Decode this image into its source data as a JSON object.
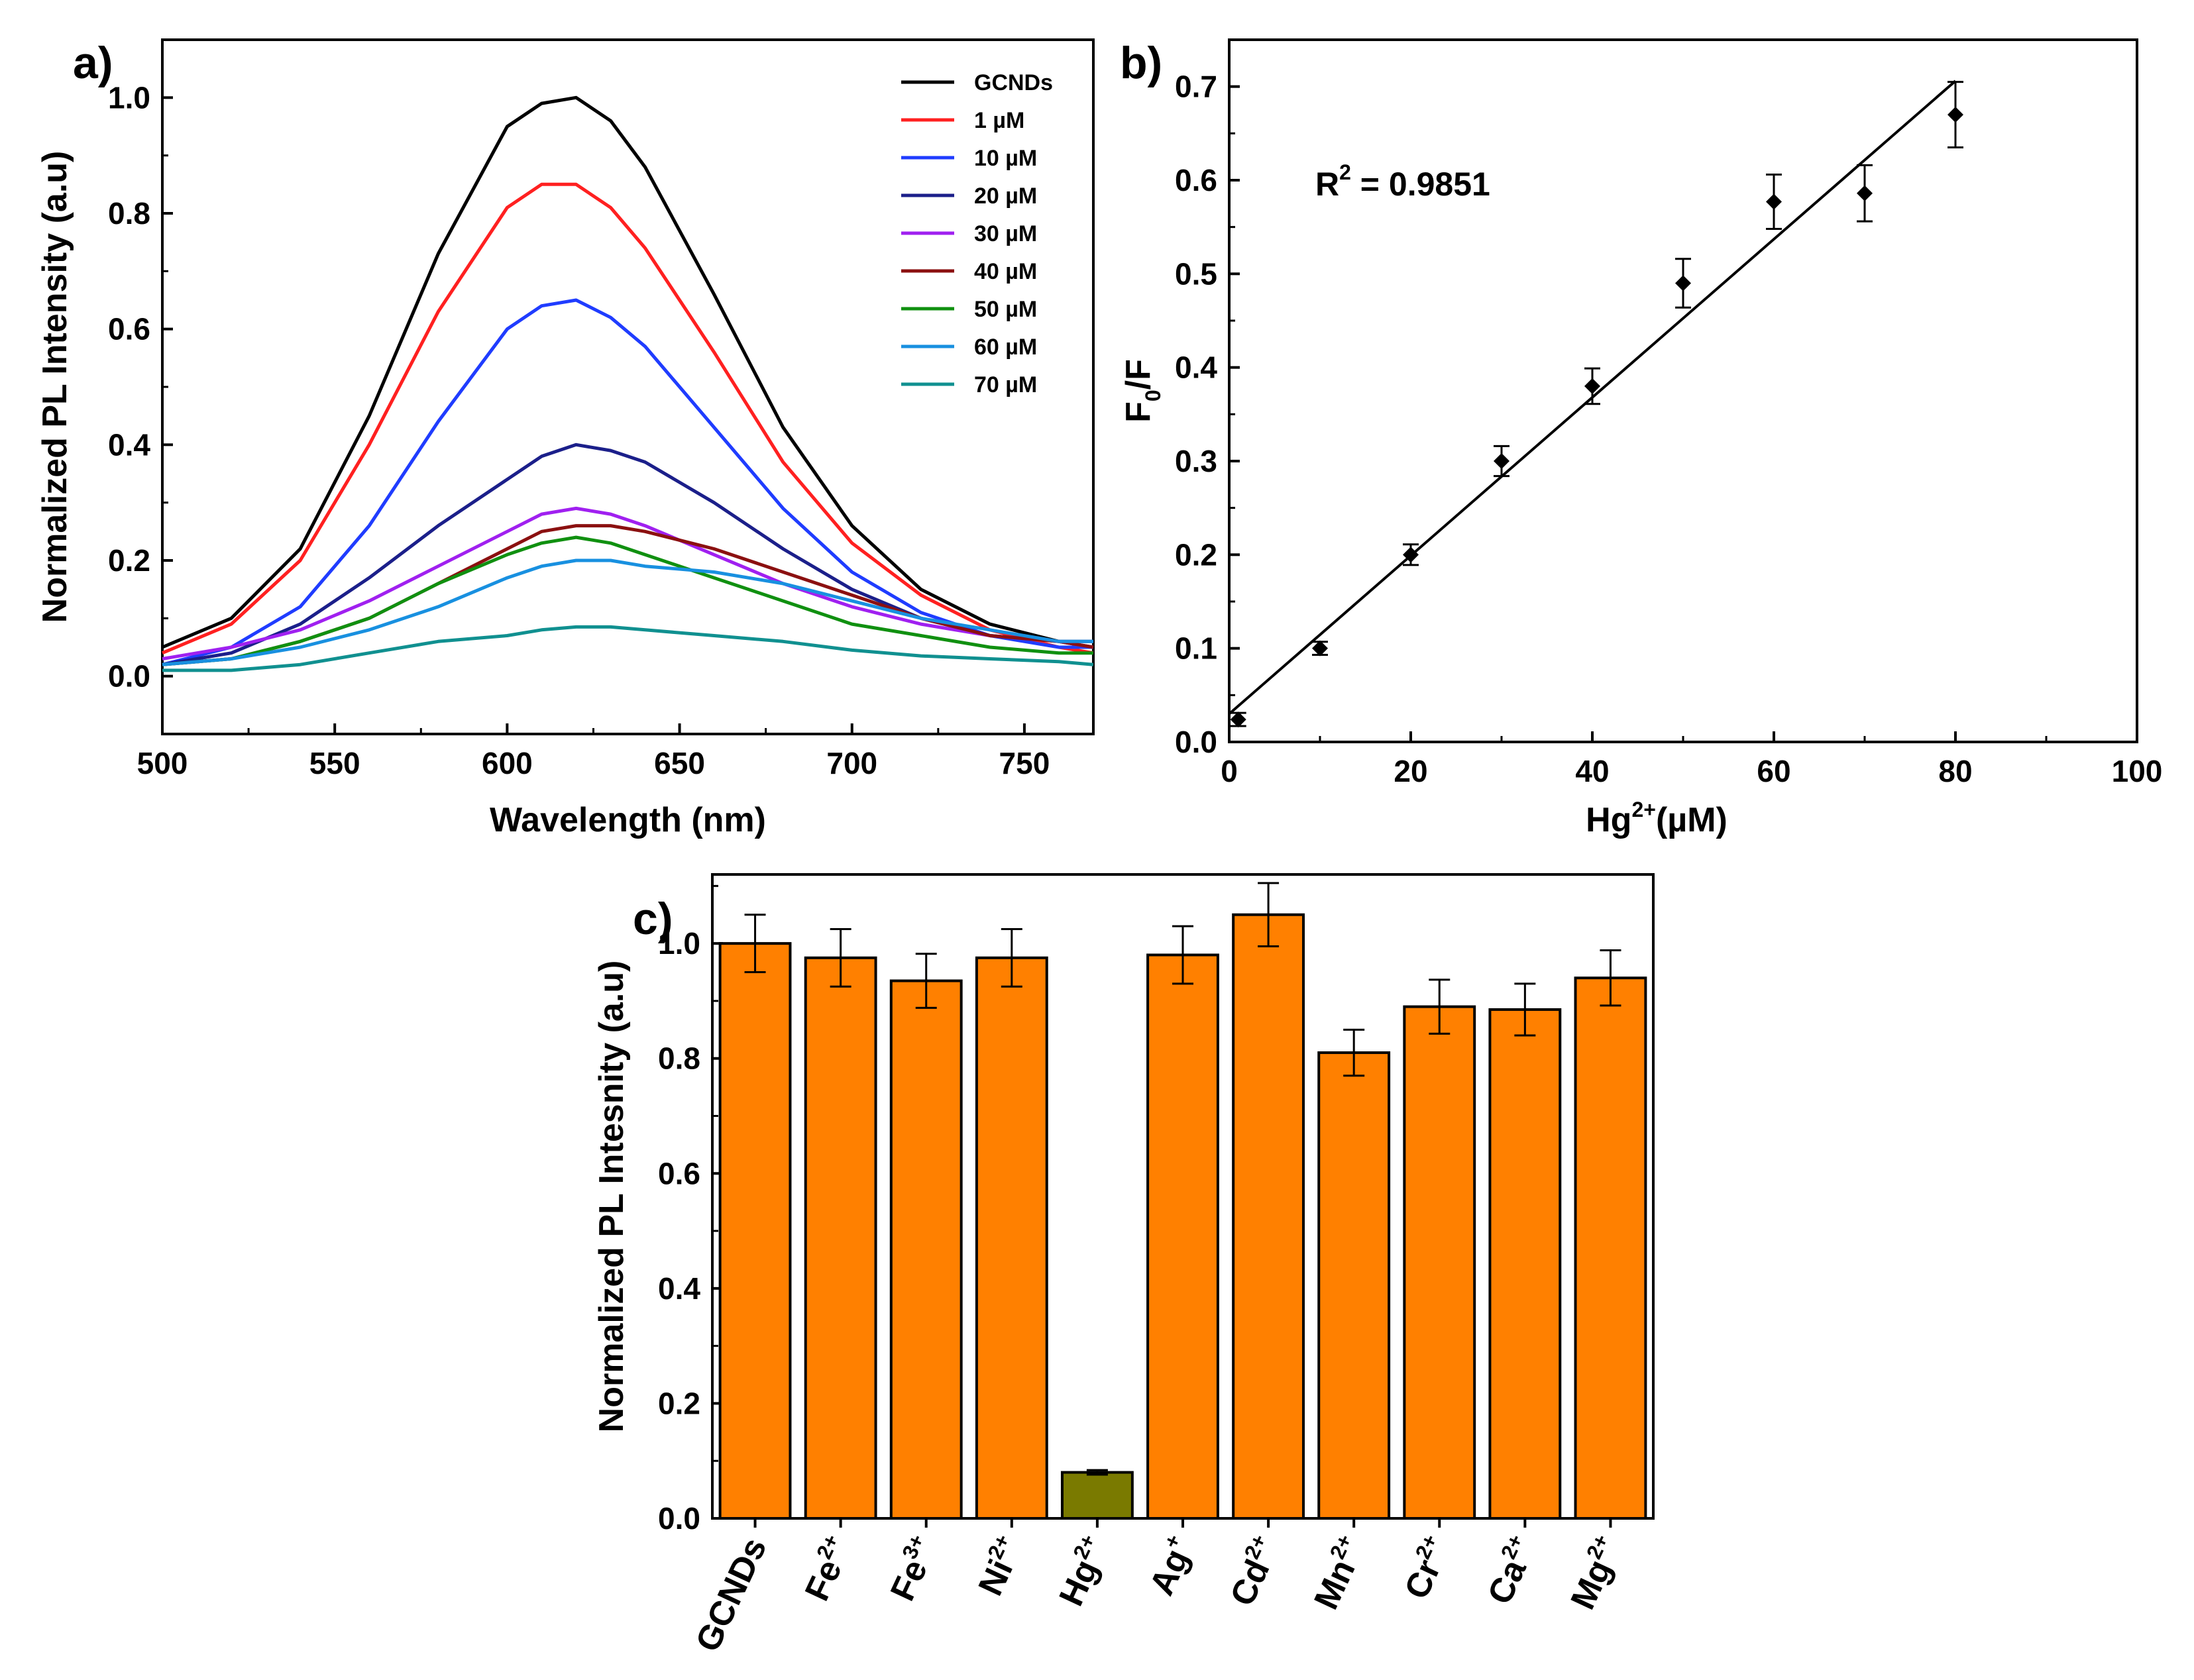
{
  "chart_data": [
    {
      "panel_label": "a)",
      "type": "line",
      "xlabel": "Wavelength (nm)",
      "ylabel": "Normalized PL Intensity (a.u)",
      "xlim": [
        500,
        770
      ],
      "ylim": [
        -0.1,
        1.1
      ],
      "x_ticks": [
        "500",
        "550",
        "600",
        "650",
        "700",
        "750"
      ],
      "y_ticks": [
        "0.0",
        "0.2",
        "0.4",
        "0.6",
        "0.8",
        "1.0"
      ],
      "x": [
        500,
        520,
        540,
        560,
        580,
        600,
        610,
        620,
        630,
        640,
        660,
        680,
        700,
        720,
        740,
        760,
        770
      ],
      "series": [
        {
          "name": "GCNDs",
          "color": "#000000",
          "values": [
            0.05,
            0.1,
            0.22,
            0.45,
            0.73,
            0.95,
            0.99,
            1.0,
            0.96,
            0.88,
            0.66,
            0.43,
            0.26,
            0.15,
            0.09,
            0.06,
            0.05
          ]
        },
        {
          "name": "1 µM",
          "color": "#ff2020",
          "values": [
            0.04,
            0.09,
            0.2,
            0.4,
            0.63,
            0.81,
            0.85,
            0.85,
            0.81,
            0.74,
            0.56,
            0.37,
            0.23,
            0.14,
            0.08,
            0.05,
            0.04
          ]
        },
        {
          "name": "10 µM",
          "color": "#1f3cff",
          "values": [
            0.02,
            0.05,
            0.12,
            0.26,
            0.44,
            0.6,
            0.64,
            0.65,
            0.62,
            0.57,
            0.43,
            0.29,
            0.18,
            0.11,
            0.07,
            0.05,
            0.05
          ]
        },
        {
          "name": "20 µM",
          "color": "#1b1f8a",
          "values": [
            0.02,
            0.04,
            0.09,
            0.17,
            0.26,
            0.34,
            0.38,
            0.4,
            0.39,
            0.37,
            0.3,
            0.22,
            0.15,
            0.1,
            0.07,
            0.06,
            0.06
          ]
        },
        {
          "name": "30 µM",
          "color": "#a020f0",
          "values": [
            0.03,
            0.05,
            0.08,
            0.13,
            0.19,
            0.25,
            0.28,
            0.29,
            0.28,
            0.26,
            0.21,
            0.16,
            0.12,
            0.09,
            0.07,
            0.06,
            0.05
          ]
        },
        {
          "name": "40 µM",
          "color": "#8b1010",
          "values": [
            0.02,
            0.03,
            0.06,
            0.1,
            0.16,
            0.22,
            0.25,
            0.26,
            0.26,
            0.25,
            0.22,
            0.18,
            0.14,
            0.1,
            0.07,
            0.06,
            0.05
          ]
        },
        {
          "name": "50 µM",
          "color": "#109010",
          "values": [
            0.02,
            0.03,
            0.06,
            0.1,
            0.16,
            0.21,
            0.23,
            0.24,
            0.23,
            0.21,
            0.17,
            0.13,
            0.09,
            0.07,
            0.05,
            0.04,
            0.04
          ]
        },
        {
          "name": "60 µM",
          "color": "#1890e0",
          "values": [
            0.02,
            0.03,
            0.05,
            0.08,
            0.12,
            0.17,
            0.19,
            0.2,
            0.2,
            0.19,
            0.18,
            0.16,
            0.13,
            0.1,
            0.08,
            0.06,
            0.06
          ]
        },
        {
          "name": "70 µM",
          "color": "#109090",
          "values": [
            0.01,
            0.01,
            0.02,
            0.04,
            0.06,
            0.07,
            0.08,
            0.085,
            0.085,
            0.08,
            0.07,
            0.06,
            0.045,
            0.035,
            0.03,
            0.025,
            0.02
          ]
        }
      ]
    },
    {
      "panel_label": "b)",
      "type": "scatter",
      "xlabel": "Hg2+(µM)",
      "xlabel_parts": [
        "Hg",
        "2+",
        "(µM)"
      ],
      "ylabel": "F0/F",
      "ylabel_parts": [
        "F",
        "0",
        "/F"
      ],
      "xlim": [
        0,
        100
      ],
      "ylim": [
        0,
        0.75
      ],
      "x_ticks": [
        "0",
        "20",
        "40",
        "60",
        "80",
        "100"
      ],
      "y_ticks": [
        "0.0",
        "0.1",
        "0.2",
        "0.3",
        "0.4",
        "0.5",
        "0.6",
        "0.7"
      ],
      "annotation": {
        "text": "R2 = 0.9851",
        "base": "R",
        "sup": "2",
        "rest": " = 0.9851"
      },
      "x": [
        1,
        10,
        20,
        30,
        40,
        50,
        60,
        70,
        80
      ],
      "y": [
        0.024,
        0.1,
        0.2,
        0.3,
        0.38,
        0.49,
        0.577,
        0.586,
        0.67
      ],
      "y_err": [
        0.007,
        0.007,
        0.011,
        0.016,
        0.019,
        0.026,
        0.029,
        0.03,
        0.035
      ],
      "fit_line": {
        "x": [
          0,
          80
        ],
        "y": [
          0.03,
          0.706
        ]
      }
    },
    {
      "panel_label": "c)",
      "type": "bar",
      "ylabel": "Normalized PL Intesnity (a.u)",
      "ylim": [
        0,
        1.12
      ],
      "y_ticks": [
        "0.0",
        "0.2",
        "0.4",
        "0.6",
        "0.8",
        "1.0"
      ],
      "categories": [
        {
          "base": "GCNDs",
          "sup": ""
        },
        {
          "base": "Fe",
          "sup": "2+"
        },
        {
          "base": "Fe",
          "sup": "3+"
        },
        {
          "base": "Ni",
          "sup": "2+"
        },
        {
          "base": "Hg",
          "sup": "2+"
        },
        {
          "base": "Ag",
          "sup": "+"
        },
        {
          "base": "Cd",
          "sup": "2+"
        },
        {
          "base": "Mn",
          "sup": "2+"
        },
        {
          "base": "Cr",
          "sup": "2+"
        },
        {
          "base": "Ca",
          "sup": "2+"
        },
        {
          "base": "Mg",
          "sup": "2+"
        }
      ],
      "values": [
        1.0,
        0.975,
        0.935,
        0.975,
        0.08,
        0.98,
        1.05,
        0.81,
        0.89,
        0.885,
        0.94
      ],
      "errors": [
        0.05,
        0.05,
        0.047,
        0.05,
        0.004,
        0.05,
        0.055,
        0.04,
        0.047,
        0.045,
        0.048
      ],
      "colors": [
        "#ff8000",
        "#ff8000",
        "#ff8000",
        "#ff8000",
        "#7a7a00",
        "#ff8000",
        "#ff8000",
        "#ff8000",
        "#ff8000",
        "#ff8000",
        "#ff8000"
      ]
    }
  ]
}
